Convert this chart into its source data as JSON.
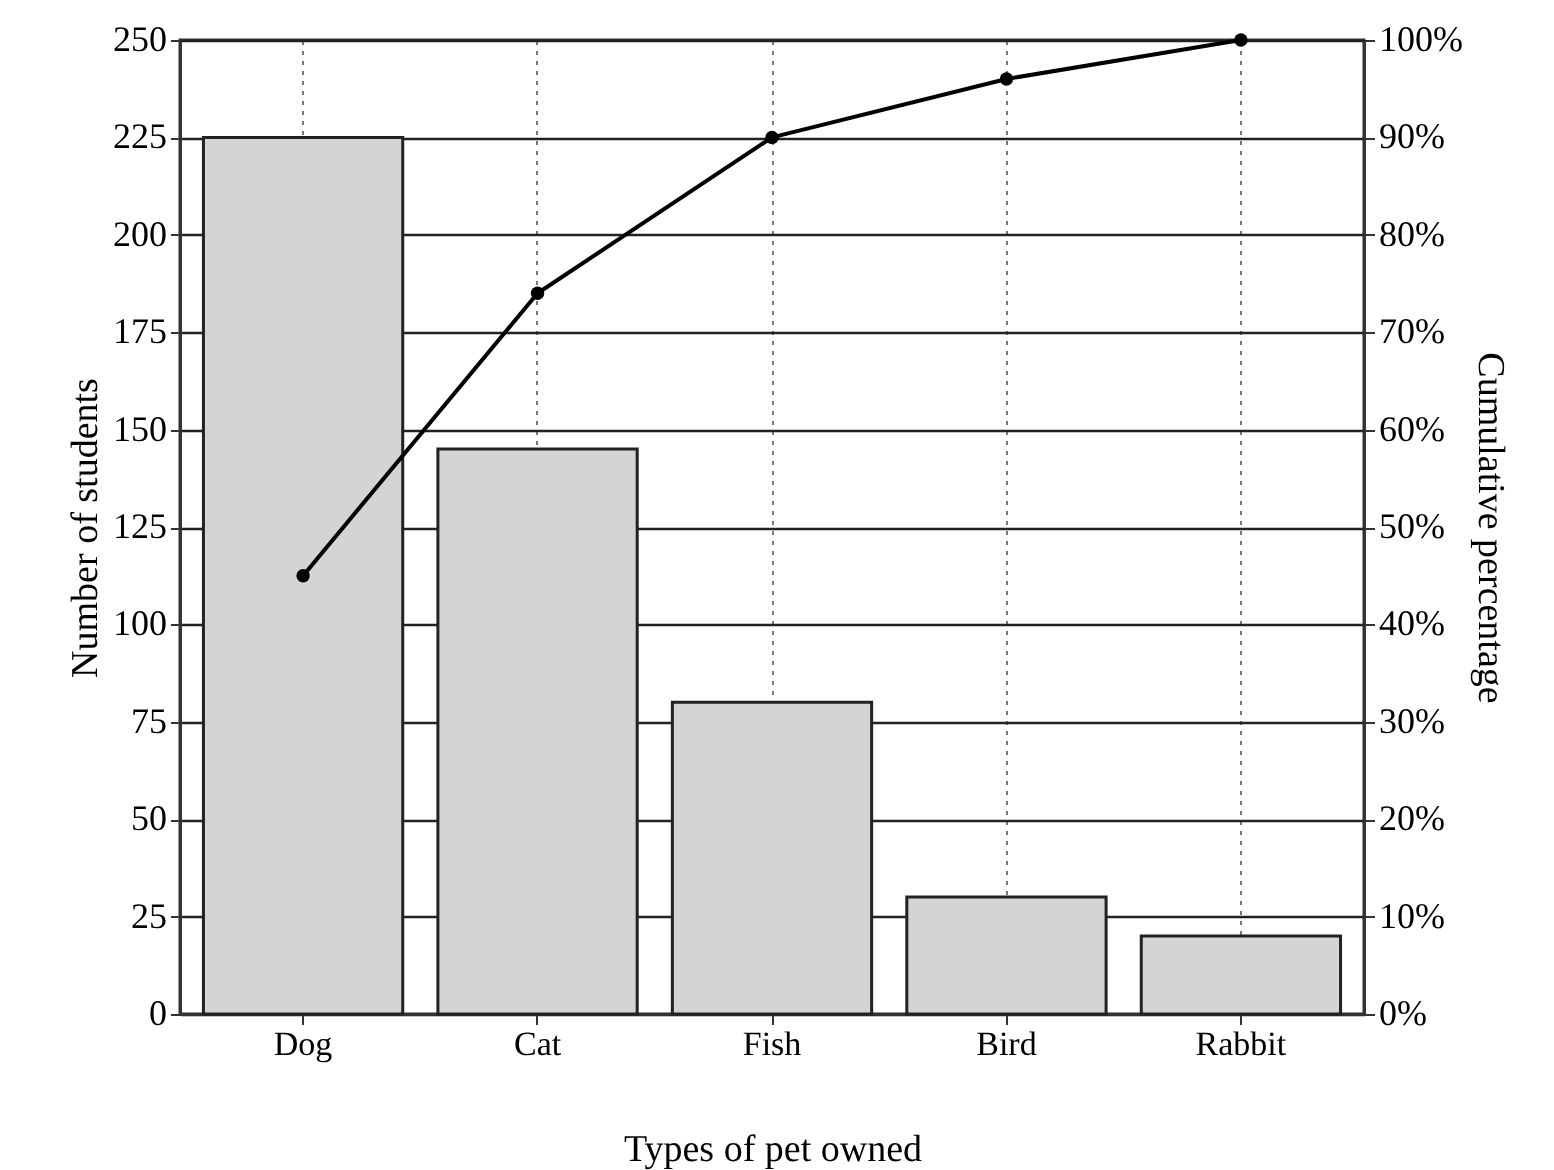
{
  "chart_data": {
    "type": "bar",
    "xlabel": "Types of pet owned",
    "ylabel": "Number of students",
    "y2label": "Cumulative percentage",
    "categories": [
      "Dog",
      "Cat",
      "Fish",
      "Bird",
      "Rabbit"
    ],
    "series": [
      {
        "color": "#d4d4d4",
        "values": [
          225,
          145,
          80,
          30,
          20
        ]
      },
      {
        "type": "line",
        "axis": "y2",
        "color": "#000000",
        "values": [
          45,
          74,
          90,
          96,
          100
        ]
      }
    ],
    "ylim": [
      0,
      250
    ],
    "yticks": [
      0,
      25,
      50,
      75,
      100,
      125,
      150,
      175,
      200,
      225,
      250
    ],
    "y2lim": [
      0,
      100
    ],
    "y2ticks": [
      {
        "value": 0,
        "label": "0%"
      },
      {
        "value": 10,
        "label": "10%"
      },
      {
        "value": 20,
        "label": "20%"
      },
      {
        "value": 30,
        "label": "30%"
      },
      {
        "value": 40,
        "label": "40%"
      },
      {
        "value": 50,
        "label": "50%"
      },
      {
        "value": 60,
        "label": "60%"
      },
      {
        "value": 70,
        "label": "70%"
      },
      {
        "value": 80,
        "label": "80%"
      },
      {
        "value": 90,
        "label": "90%"
      },
      {
        "value": 100,
        "label": "100%"
      }
    ],
    "grid": true,
    "marker": "circle",
    "line_style": "solid"
  }
}
